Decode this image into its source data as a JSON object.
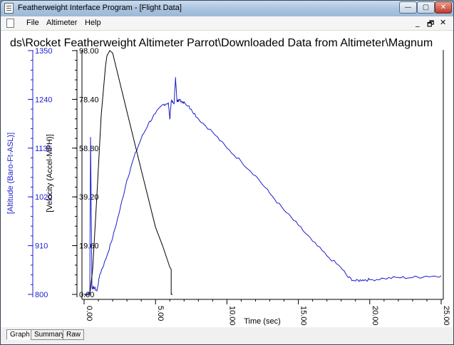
{
  "window": {
    "title": "Featherweight Interface Program - [Flight Data]"
  },
  "window_controls": {
    "minimize": "—",
    "maximize": "▢",
    "close": "✕"
  },
  "menu": {
    "items": [
      "File",
      "Altimeter",
      "Help"
    ]
  },
  "mdi_controls": {
    "minimize": "_",
    "restore": "🗗",
    "close": "✕"
  },
  "graph": {
    "title": "ds\\Rocket Featherweight Altimeter Parrot\\Downloaded Data from Altimeter\\Magnum",
    "colors": {
      "altitude": "#1c1ccc",
      "velocity": "#000000",
      "background": "#ffffff"
    }
  },
  "tabs": [
    {
      "label": "Graph",
      "active": true
    },
    {
      "label": "Summary",
      "active": false
    },
    {
      "label": "Raw",
      "active": false
    }
  ],
  "chart_data": {
    "type": "line",
    "title": "ds\\Rocket Featherweight Altimeter Parrot\\Downloaded Data from Altimeter\\Magnum",
    "xlabel": "Time (sec)",
    "x_ticks": [
      "0.00",
      "5.00",
      "10.00",
      "15.00",
      "20.00",
      "25.00"
    ],
    "xlim": [
      0,
      25
    ],
    "axes": [
      {
        "label": "[Altitude (Baro-Ft-ASL)]",
        "ticks": [
          "800",
          "910",
          "1020",
          "1130",
          "1240",
          "1350"
        ],
        "ylim": [
          800,
          1350
        ],
        "color": "#1c1ccc"
      },
      {
        "label": "[Velocity (Accel-MPH)]",
        "ticks": [
          "0.00",
          "19.60",
          "39.20",
          "58.80",
          "78.40",
          "98.00"
        ],
        "ylim": [
          0,
          98
        ],
        "color": "#000000"
      }
    ],
    "series": [
      {
        "axis": 0,
        "color": "#1c1ccc",
        "x": [
          0,
          0.2,
          0.4,
          0.45,
          0.55,
          0.7,
          0.9,
          1.1,
          1.5,
          2.0,
          2.5,
          3.0,
          3.5,
          4.0,
          4.5,
          5.0,
          5.5,
          5.9,
          6.0,
          6.1,
          6.3,
          6.4,
          6.5,
          6.6,
          6.8,
          7.0,
          7.5,
          8.0,
          9.0,
          10.0,
          11.0,
          12.0,
          13.0,
          14.0,
          15.0,
          16.0,
          17.0,
          18.0,
          18.5,
          19.0,
          19.5,
          20.0,
          21.0,
          22.0,
          23.0,
          24.0,
          25.0
        ],
        "y": [
          800,
          800,
          805,
          1155,
          815,
          815,
          808,
          845,
          878,
          928,
          990,
          1058,
          1110,
          1152,
          1185,
          1208,
          1228,
          1232,
          1195,
          1236,
          1230,
          1290,
          1235,
          1240,
          1236,
          1234,
          1218,
          1196,
          1166,
          1130,
          1100,
          1068,
          1028,
          990,
          956,
          920,
          887,
          860,
          838,
          830,
          833,
          833,
          836,
          838,
          838,
          841,
          842
        ]
      },
      {
        "axis": 1,
        "color": "#000000",
        "x": [
          0,
          0.2,
          0.4,
          0.6,
          0.9,
          1.2,
          1.5,
          1.6,
          1.8,
          2.0,
          3.0,
          4.0,
          5.0,
          5.5,
          6.0,
          6.1,
          6.1,
          6.2
        ],
        "y": [
          0,
          0,
          0,
          10,
          40,
          72,
          92,
          96,
          98,
          97,
          73.5,
          50,
          27,
          19.5,
          11,
          10,
          0,
          0
        ]
      }
    ],
    "grid": false,
    "legend": "none"
  }
}
